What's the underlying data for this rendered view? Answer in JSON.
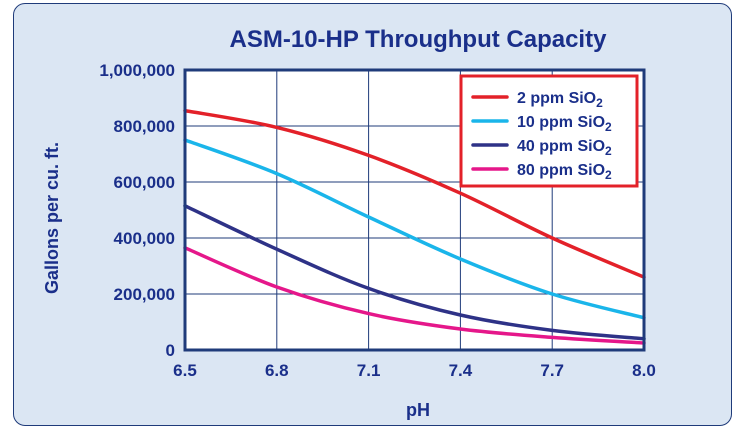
{
  "chart_data": {
    "type": "line",
    "title": "ASM-10-HP Throughput Capacity",
    "xlabel": "pH",
    "ylabel": "Gallons per cu. ft.",
    "xlim": [
      6.5,
      8.0
    ],
    "ylim": [
      0,
      1000000
    ],
    "x_ticks": [
      "6.5",
      "6.8",
      "7.1",
      "7.4",
      "7.7",
      "8.0"
    ],
    "y_ticks": [
      "0",
      "200,000",
      "400,000",
      "600,000",
      "800,000",
      "1,000,000"
    ],
    "grid": true,
    "legend_position": "top-right",
    "x": [
      6.5,
      6.8,
      7.1,
      7.4,
      7.7,
      8.0
    ],
    "series": [
      {
        "name": "2 ppm SiO",
        "subscript": "2",
        "color": "#e32129",
        "values": [
          855000,
          795000,
          695000,
          560000,
          400000,
          260000
        ]
      },
      {
        "name": "10 ppm SiO",
        "subscript": "2",
        "color": "#1ab5ea",
        "values": [
          750000,
          630000,
          475000,
          325000,
          200000,
          115000
        ]
      },
      {
        "name": "40 ppm SiO",
        "subscript": "2",
        "color": "#2e3287",
        "values": [
          515000,
          360000,
          220000,
          125000,
          70000,
          40000
        ]
      },
      {
        "name": "80 ppm SiO",
        "subscript": "2",
        "color": "#e5178a",
        "values": [
          365000,
          225000,
          130000,
          75000,
          45000,
          25000
        ]
      }
    ]
  }
}
